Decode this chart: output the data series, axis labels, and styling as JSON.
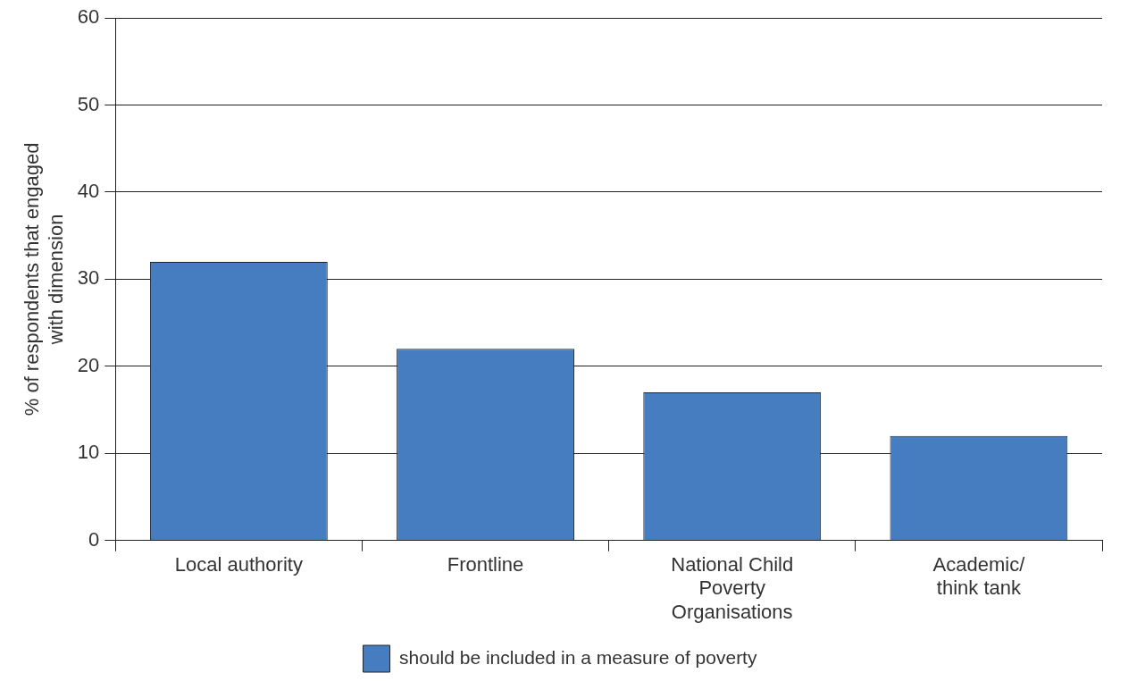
{
  "chart_data": {
    "type": "bar",
    "ylabel": "% of respondents that engaged with dimension",
    "categories": [
      "Local authority",
      "Frontline",
      "National Child Poverty Organisations",
      "Academic/ think tank"
    ],
    "series": [
      {
        "name": "should be included in a measure of poverty",
        "color": "#467cc0",
        "values": [
          32,
          22,
          17,
          12
        ]
      }
    ],
    "ylim": [
      0,
      60
    ],
    "yticks": [
      0,
      10,
      20,
      30,
      40,
      50,
      60
    ],
    "grid": "y",
    "legend": "bottom"
  }
}
